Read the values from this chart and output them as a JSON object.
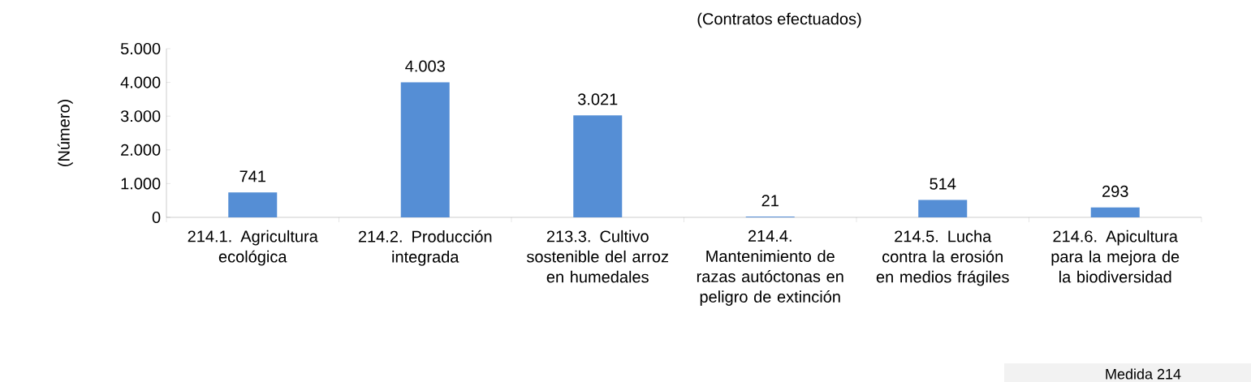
{
  "chart_data": {
    "type": "bar",
    "title": "(Contratos efectuados)",
    "ylabel": "(Número)",
    "categories": [
      "214.1. Agricultura ecológica",
      "214.2. Producción integrada",
      "213.3. Cultivo sostenible del arroz en humedales",
      "214.4. Mantenimiento de razas autóctonas en peligro de extinción",
      "214.5. Lucha contra la erosión en medios frágiles",
      "214.6. Apicultura para la mejora de la biodiversidad"
    ],
    "values": [
      741,
      4003,
      3021,
      21,
      514,
      293
    ],
    "value_labels": [
      "741",
      "4.003",
      "3.021",
      "21",
      "514",
      "293"
    ],
    "color": "#558ed5",
    "ylim": [
      0,
      5000
    ],
    "yticks": [
      0,
      {
        "value": 1000,
        "label": "1.000"
      },
      {
        "value": 2000,
        "label": "2.000"
      },
      {
        "value": 3000,
        "label": "3.000"
      },
      {
        "value": 4000,
        "label": "4.000"
      },
      {
        "value": 5000,
        "label": "5.000"
      }
    ],
    "grid": false,
    "annotations": [
      "Medida 214"
    ]
  }
}
